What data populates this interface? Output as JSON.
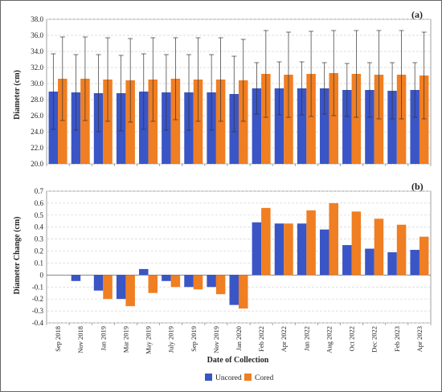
{
  "chart_data": [
    {
      "panel": "(a)",
      "type": "bar",
      "ylabel": "Diameter (cm)",
      "ylim": [
        20.0,
        38.0
      ],
      "yticks": [
        "20.0",
        "22.0",
        "24.0",
        "26.0",
        "28.0",
        "30.0",
        "32.0",
        "34.0",
        "36.0",
        "38.0"
      ],
      "grid": true,
      "categories": [
        "Sep 2018",
        "Nov 2018",
        "Jan 2019",
        "Mar 2019",
        "May 2019",
        "July 2019",
        "Sep 2019",
        "Nov 2019",
        "Jan 2020",
        "Feb 2022",
        "Apr 2022",
        "Jun 2022",
        "Aug 2022",
        "Oct 2022",
        "Dec 2022",
        "Feb 2023",
        "Apr 2023"
      ],
      "series": [
        {
          "name": "Uncored",
          "color": "#3a55c6",
          "values": [
            29.0,
            28.9,
            28.8,
            28.8,
            29.0,
            28.9,
            28.9,
            28.9,
            28.7,
            29.4,
            29.4,
            29.4,
            29.4,
            29.2,
            29.2,
            29.1,
            29.2
          ],
          "error": [
            4.7,
            4.7,
            4.8,
            4.7,
            4.7,
            4.7,
            4.7,
            4.7,
            4.7,
            3.2,
            3.3,
            3.3,
            3.2,
            3.3,
            3.4,
            3.5,
            3.4
          ]
        },
        {
          "name": "Cored",
          "color": "#f07e22",
          "values": [
            30.6,
            30.6,
            30.5,
            30.4,
            30.5,
            30.6,
            30.5,
            30.5,
            30.4,
            31.2,
            31.1,
            31.2,
            31.3,
            31.2,
            31.1,
            31.1,
            31.0
          ],
          "error": [
            5.2,
            5.2,
            5.2,
            5.2,
            5.2,
            5.1,
            5.2,
            5.2,
            5.1,
            5.4,
            5.3,
            5.3,
            5.3,
            5.4,
            5.5,
            5.5,
            5.4
          ]
        }
      ]
    },
    {
      "panel": "(b)",
      "type": "bar",
      "ylabel": "Diameter Change (cm)",
      "xlabel": "Date of Collection",
      "ylim": [
        -0.4,
        0.7
      ],
      "yticks": [
        "-0.4",
        "-0.3",
        "-0.2",
        "-0.1",
        "0",
        "0.1",
        "0.2",
        "0.3",
        "0.4",
        "0.5",
        "0.6",
        "0.7"
      ],
      "grid": true,
      "categories": [
        "Sep 2018",
        "Nov 2018",
        "Jan 2019",
        "Mar 2019",
        "May 2019",
        "July 2019",
        "Sep 2019",
        "Nov 2019",
        "Jan 2020",
        "Feb 2022",
        "Apr 2022",
        "Jun 2022",
        "Aug 2022",
        "Oct 2022",
        "Dec 2022",
        "Feb 2023",
        "Apr 2023"
      ],
      "series": [
        {
          "name": "Uncored",
          "color": "#3a55c6",
          "values": [
            0,
            -0.05,
            -0.13,
            -0.2,
            0.05,
            -0.05,
            -0.1,
            -0.1,
            -0.25,
            0.44,
            0.43,
            0.43,
            0.38,
            0.25,
            0.22,
            0.19,
            0.21
          ]
        },
        {
          "name": "Cored",
          "color": "#f07e22",
          "values": [
            0,
            0,
            -0.2,
            -0.26,
            -0.15,
            -0.1,
            -0.12,
            -0.16,
            -0.28,
            0.56,
            0.43,
            0.54,
            0.6,
            0.53,
            0.47,
            0.42,
            0.32
          ]
        }
      ]
    }
  ],
  "legend": {
    "placement": "bottom",
    "items": [
      {
        "label": "Uncored",
        "color": "#3a55c6"
      },
      {
        "label": "Cored",
        "color": "#f07e22"
      }
    ]
  }
}
